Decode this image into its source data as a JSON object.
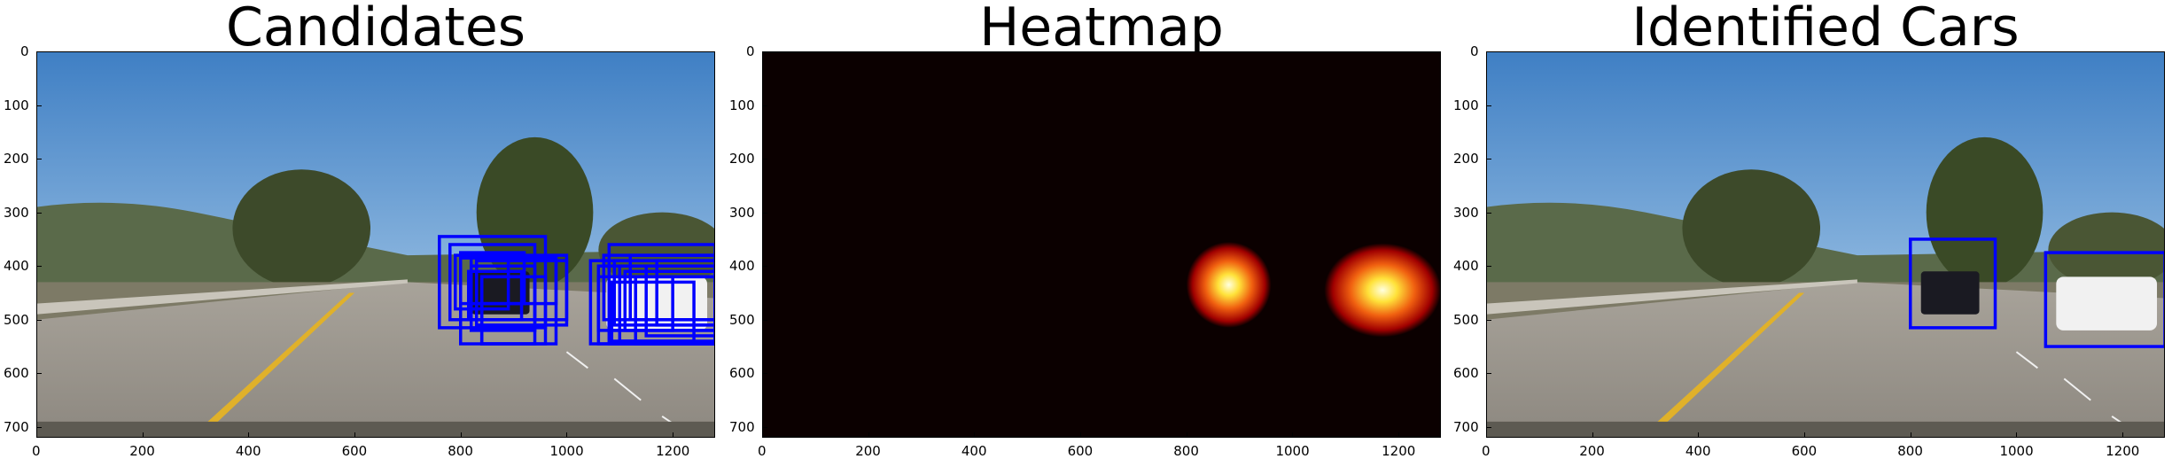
{
  "chart_data": [
    {
      "type": "image",
      "title": "Candidates",
      "xlim": [
        0,
        1280
      ],
      "ylim": [
        720,
        0
      ],
      "x_ticks": [
        0,
        200,
        400,
        600,
        800,
        1000,
        1200
      ],
      "y_ticks": [
        0,
        100,
        200,
        300,
        400,
        500,
        600,
        700
      ],
      "box_color": "#0000ff",
      "boxes": [
        [
          760,
          345,
          960,
          515
        ],
        [
          780,
          360,
          940,
          500
        ],
        [
          800,
          375,
          920,
          470
        ],
        [
          790,
          380,
          890,
          480
        ],
        [
          800,
          385,
          980,
          545
        ],
        [
          820,
          400,
          940,
          520
        ],
        [
          815,
          410,
          915,
          500
        ],
        [
          830,
          390,
          1000,
          510
        ],
        [
          820,
          380,
          1000,
          500
        ],
        [
          840,
          420,
          940,
          545
        ],
        [
          840,
          420,
          960,
          545
        ],
        [
          830,
          390,
          980,
          470
        ],
        [
          1045,
          390,
          1280,
          545
        ],
        [
          1060,
          400,
          1280,
          545
        ],
        [
          1080,
          420,
          1280,
          545
        ],
        [
          1070,
          380,
          1280,
          500
        ],
        [
          1080,
          360,
          1280,
          520
        ],
        [
          1090,
          390,
          1280,
          510
        ],
        [
          1100,
          400,
          1280,
          540
        ],
        [
          1110,
          410,
          1280,
          520
        ],
        [
          1120,
          380,
          1280,
          500
        ],
        [
          1130,
          420,
          1280,
          545
        ],
        [
          1150,
          400,
          1280,
          530
        ],
        [
          1060,
          420,
          1200,
          520
        ],
        [
          1085,
          430,
          1240,
          540
        ],
        [
          1170,
          390,
          1280,
          510
        ]
      ]
    },
    {
      "type": "heatmap",
      "title": "Heatmap",
      "xlim": [
        0,
        1280
      ],
      "ylim": [
        720,
        0
      ],
      "x_ticks": [
        0,
        200,
        400,
        600,
        800,
        1000,
        1200
      ],
      "y_ticks": [
        0,
        100,
        200,
        300,
        400,
        500,
        600,
        700
      ],
      "background_color": "#0b0000",
      "hotspots": [
        {
          "x": 880,
          "y": 435,
          "x_range": [
            800,
            960
          ],
          "y_range": [
            350,
            510
          ]
        },
        {
          "x": 1170,
          "y": 445,
          "x_range": [
            1060,
            1280
          ],
          "y_range": [
            370,
            545
          ]
        }
      ]
    },
    {
      "type": "image",
      "title": "Identified Cars",
      "xlim": [
        0,
        1280
      ],
      "ylim": [
        720,
        0
      ],
      "x_ticks": [
        0,
        200,
        400,
        600,
        800,
        1000,
        1200
      ],
      "y_ticks": [
        0,
        100,
        200,
        300,
        400,
        500,
        600,
        700
      ],
      "box_color": "#0000ff",
      "boxes": [
        [
          800,
          350,
          960,
          515
        ],
        [
          1055,
          375,
          1280,
          550
        ]
      ]
    }
  ]
}
